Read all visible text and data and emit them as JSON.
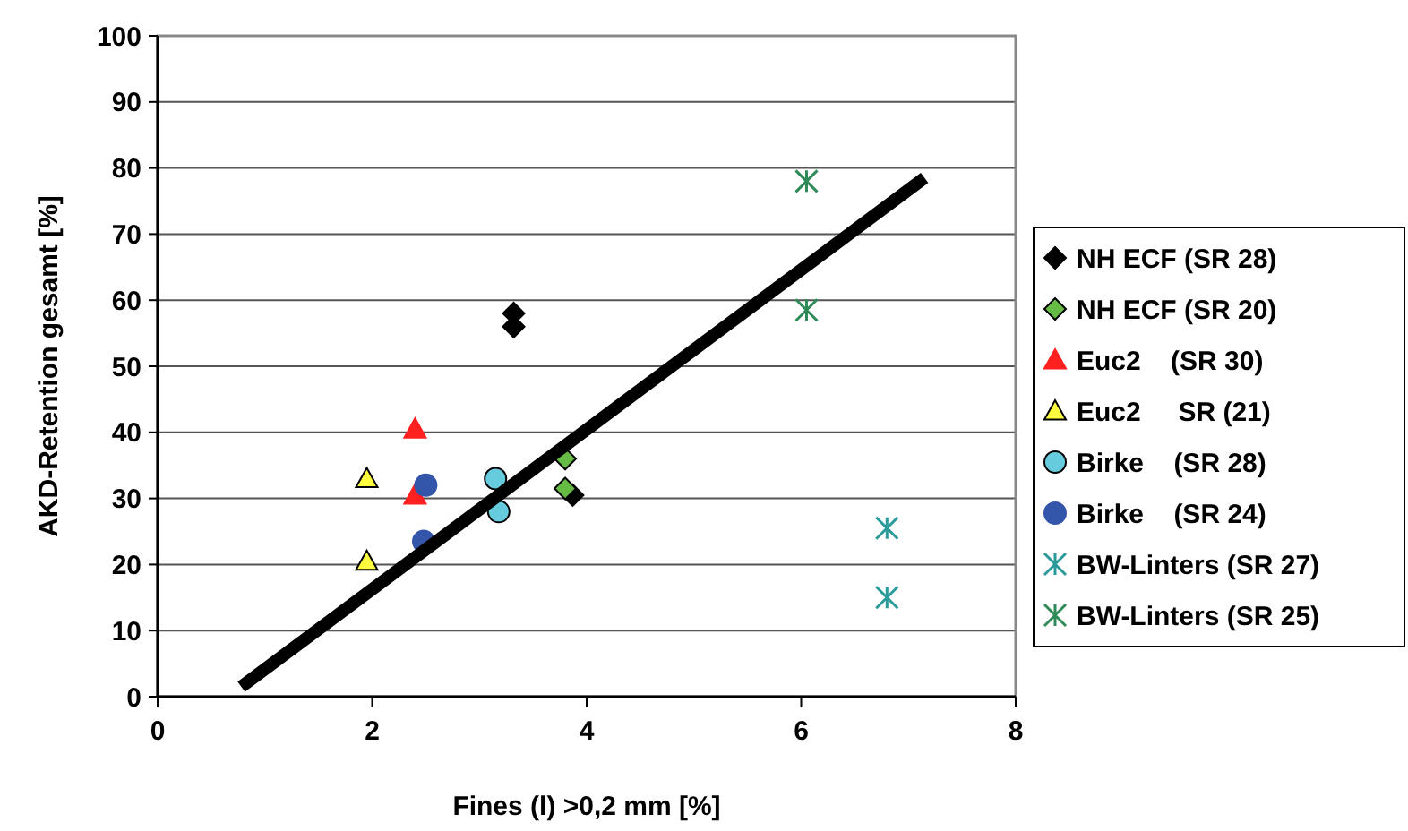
{
  "chart_data": {
    "type": "scatter",
    "xlabel": "Fines (l) >0,2 mm [%]",
    "ylabel": "AKD-Retention gesamt [%]",
    "xlim": [
      0,
      8
    ],
    "xticks": [
      0,
      2,
      4,
      6,
      8
    ],
    "ylim": [
      0,
      100
    ],
    "yticks": [
      0,
      10,
      20,
      30,
      40,
      50,
      60,
      70,
      80,
      90,
      100
    ],
    "grid": "y",
    "legend": "right",
    "series": [
      {
        "name": "NH ECF (SR 28)",
        "color": "#000000",
        "marker": "diamond",
        "x": [
          3.32,
          3.32,
          3.87
        ],
        "values": [
          58,
          56,
          30.5
        ]
      },
      {
        "name": "NH ECF (SR 20)",
        "color": "#66bb44",
        "marker": "diamond",
        "x": [
          3.8,
          3.8
        ],
        "values": [
          36,
          31.5
        ]
      },
      {
        "name": "Euc2    (SR 30)",
        "color": "#ff2020",
        "marker": "triangle",
        "x": [
          2.4,
          2.4
        ],
        "values": [
          40.5,
          30.5
        ]
      },
      {
        "name": "Euc2     SR (21)",
        "color": "#ffff40",
        "marker": "triangle",
        "x": [
          1.95,
          1.95
        ],
        "values": [
          33,
          20.5
        ]
      },
      {
        "name": "Birke    (SR 28)",
        "color": "#66ccdd",
        "marker": "circle",
        "x": [
          3.15,
          3.18
        ],
        "values": [
          33,
          28
        ]
      },
      {
        "name": "Birke    (SR 24)",
        "color": "#3355aa",
        "marker": "circle",
        "x": [
          2.5,
          2.48
        ],
        "values": [
          32,
          23.5
        ]
      },
      {
        "name": "BW-Linters (SR 27)",
        "color": "#2a9a9a",
        "marker": "cross",
        "x": [
          6.8,
          6.8
        ],
        "values": [
          25.5,
          15
        ]
      },
      {
        "name": "BW-Linters (SR 25)",
        "color": "#2e8b57",
        "marker": "cross",
        "x": [
          6.05,
          6.05
        ],
        "values": [
          78,
          58.5
        ]
      },
      {
        "type": "line",
        "color": "#000000",
        "x": [
          0.78,
          7.15
        ],
        "values": [
          1.5,
          78.5
        ]
      }
    ]
  }
}
